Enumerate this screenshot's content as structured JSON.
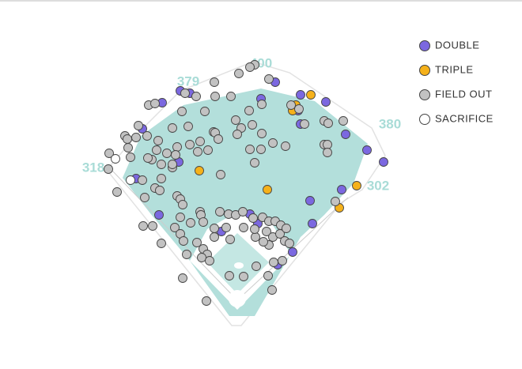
{
  "chart_data": {
    "type": "scatter",
    "xlim": [
      0,
      660
    ],
    "ylim": [
      467,
      0
    ],
    "annotations": [
      "379",
      "400",
      "380",
      "318",
      "302"
    ],
    "series": [
      {
        "name": "DOUBLE",
        "color": "#7b68e0",
        "x": [
          205,
          228,
          240,
          348,
          330,
          380,
          412,
          380,
          377,
          437,
          464,
          485,
          432,
          392,
          395,
          180,
          226,
          172,
          201,
          280,
          316,
          326,
          370,
          351
        ],
        "y": [
          130,
          115,
          118,
          104,
          125,
          120,
          129,
          157,
          140,
          170,
          190,
          205,
          240,
          254,
          283,
          163,
          205,
          226,
          272,
          293,
          271,
          283,
          319,
          335
        ]
      },
      {
        "name": "TRIPLE",
        "color": "#f5b11a",
        "x": [
          393,
          374,
          370,
          252,
          338,
          451,
          429
        ],
        "y": [
          120,
          133,
          140,
          216,
          240,
          235,
          263
        ]
      },
      {
        "name": "FIELD OUT",
        "color": "#c2c2c2",
        "x": [
          322,
          316,
          302,
          271,
          340,
          234,
          248,
          272,
          292,
          188,
          196,
          230,
          259,
          315,
          331,
          368,
          378,
          385,
          410,
          415,
          434,
          410,
          414,
          414,
          424,
          175,
          158,
          161,
          172,
          186,
          162,
          200,
          218,
          238,
          270,
          272,
          298,
          305,
          319,
          331,
          300,
          276,
          253,
          240,
          224,
          211,
          198,
          138,
          165,
          192,
          204,
          218,
          137,
          148,
          180,
          204,
          196,
          202,
          224,
          228,
          183,
          250,
          263,
          316,
          330,
          345,
          361,
          322,
          279,
          231,
          228,
          253,
          254,
          278,
          289,
          298,
          307,
          320,
          332,
          340,
          348,
          355,
          337,
          345,
          354,
          362,
          340,
          360,
          366,
          323,
          333,
          308,
          322,
          241,
          257,
          271,
          286,
          181,
          193,
          221,
          228,
          232,
          204,
          236,
          249,
          257,
          262,
          271,
          291,
          255,
          265,
          346,
          357,
          324,
          290,
          308,
          339,
          231,
          261,
          344,
          218,
          222,
          187
        ],
        "y": [
          82,
          85,
          93,
          104,
          100,
          118,
          122,
          122,
          122,
          133,
          131,
          141,
          141,
          140,
          132,
          133,
          138,
          157,
          153,
          156,
          153,
          183,
          183,
          193,
          255,
          159,
          172,
          176,
          174,
          172,
          187,
          178,
          162,
          160,
          167,
          168,
          152,
          162,
          158,
          169,
          170,
          176,
          179,
          183,
          186,
          194,
          190,
          194,
          199,
          202,
          208,
          212,
          214,
          243,
          228,
          226,
          238,
          241,
          248,
          252,
          250,
          192,
          190,
          189,
          189,
          181,
          185,
          206,
          221,
          259,
          275,
          268,
          272,
          268,
          271,
          272,
          268,
          276,
          275,
          280,
          280,
          285,
          293,
          300,
          296,
          289,
          310,
          305,
          308,
          300,
          306,
          288,
          290,
          282,
          281,
          289,
          288,
          286,
          286,
          288,
          296,
          305,
          308,
          322,
          307,
          315,
          322,
          300,
          303,
          326,
          330,
          332,
          330,
          337,
          349,
          350,
          349,
          352,
          381,
          367,
          208,
          196,
          200
        ]
      },
      {
        "name": "SACRIFICE",
        "color": "#ffffff",
        "x": [
          146,
          165
        ],
        "y": [
          201,
          228
        ]
      }
    ]
  }
}
